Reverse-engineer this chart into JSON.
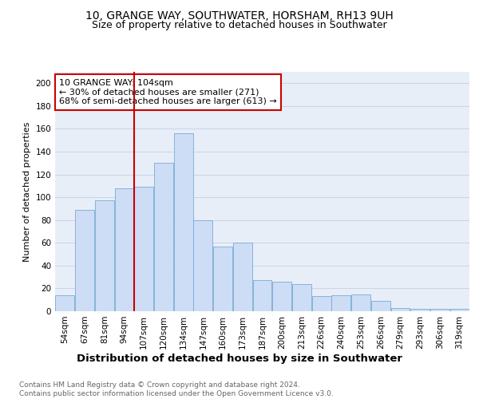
{
  "title": "10, GRANGE WAY, SOUTHWATER, HORSHAM, RH13 9UH",
  "subtitle": "Size of property relative to detached houses in Southwater",
  "xlabel": "Distribution of detached houses by size in Southwater",
  "ylabel": "Number of detached properties",
  "categories": [
    "54sqm",
    "67sqm",
    "81sqm",
    "94sqm",
    "107sqm",
    "120sqm",
    "134sqm",
    "147sqm",
    "160sqm",
    "173sqm",
    "187sqm",
    "200sqm",
    "213sqm",
    "226sqm",
    "240sqm",
    "253sqm",
    "266sqm",
    "279sqm",
    "293sqm",
    "306sqm",
    "319sqm"
  ],
  "values": [
    14,
    89,
    97,
    108,
    109,
    130,
    156,
    80,
    57,
    60,
    27,
    26,
    24,
    13,
    14,
    15,
    9,
    3,
    2,
    2,
    2
  ],
  "bar_color": "#ccddf5",
  "bar_edge_color": "#7aabd4",
  "vline_x_index": 4,
  "vline_color": "#cc0000",
  "annotation_line1": "10 GRANGE WAY: 104sqm",
  "annotation_line2": "← 30% of detached houses are smaller (271)",
  "annotation_line3": "68% of semi-detached houses are larger (613) →",
  "annotation_box_color": "#cc0000",
  "ylim": [
    0,
    210
  ],
  "yticks": [
    0,
    20,
    40,
    60,
    80,
    100,
    120,
    140,
    160,
    180,
    200
  ],
  "grid_color": "#c8d4e8",
  "bg_color": "#e8eef8",
  "footer_line1": "Contains HM Land Registry data © Crown copyright and database right 2024.",
  "footer_line2": "Contains public sector information licensed under the Open Government Licence v3.0.",
  "title_fontsize": 10,
  "subtitle_fontsize": 9,
  "xlabel_fontsize": 9.5,
  "ylabel_fontsize": 8,
  "tick_fontsize": 7.5,
  "annotation_fontsize": 8,
  "footer_fontsize": 6.5
}
